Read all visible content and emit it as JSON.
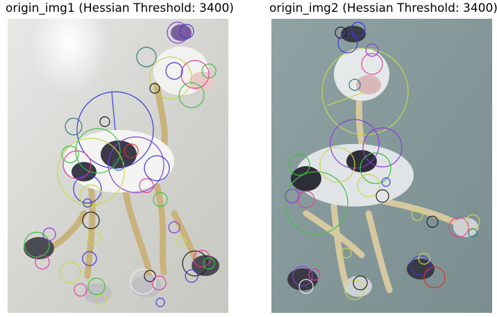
{
  "panels": [
    {
      "title": "origin_img1 (Hessian Threshold: 3400)"
    },
    {
      "title": "origin_img2 (Hessian Threshold: 3400)"
    }
  ],
  "colors": {
    "bg_left": "#dcdcd8",
    "bg_right": "#8a9a9c",
    "keypoint_palette": [
      "#3a3ad8",
      "#e0409a",
      "#40c040",
      "#c9d94a",
      "#8a3ad8",
      "#2a7a7a",
      "#e03030",
      "#f0f0f0",
      "#202020"
    ]
  }
}
